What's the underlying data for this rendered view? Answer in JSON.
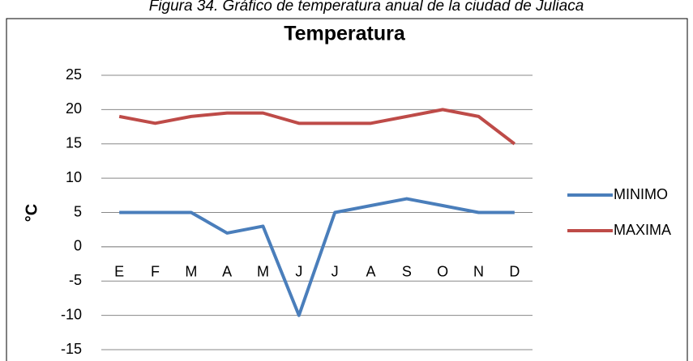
{
  "caption": "Figura 34. Gráfico de temperatura anual de la ciudad de Juliaca",
  "chart_data": {
    "type": "line",
    "title": "Temperatura",
    "y_label": "°C",
    "categories": [
      "E",
      "F",
      "M",
      "A",
      "M",
      "J",
      "J",
      "A",
      "S",
      "O",
      "N",
      "D"
    ],
    "series": [
      {
        "name": "MINIMO",
        "color": "#4a7ebb",
        "values": [
          5,
          5,
          5,
          2,
          3,
          -10,
          5,
          6,
          7,
          6,
          5,
          5
        ]
      },
      {
        "name": "MAXIMA",
        "color": "#be4b48",
        "values": [
          19,
          18,
          19,
          19.5,
          19.5,
          18,
          18,
          18,
          19,
          20,
          19,
          15
        ]
      }
    ],
    "ylim": [
      -15,
      25
    ],
    "yticks": [
      -15,
      -10,
      -5,
      0,
      5,
      10,
      15,
      20,
      25
    ],
    "grid": true,
    "legend": "right"
  }
}
